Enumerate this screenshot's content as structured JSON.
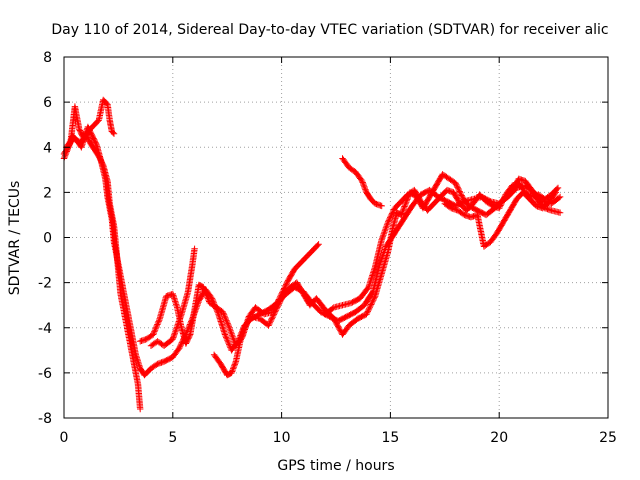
{
  "chart_data": {
    "type": "scatter",
    "title": "Day 110 of 2014, Sidereal Day-to-day VTEC variation (SDTVAR) for receiver alic",
    "xlabel": "GPS time / hours",
    "ylabel": "SDTVAR / TECUs",
    "xlim": [
      0,
      25
    ],
    "ylim": [
      -8,
      8
    ],
    "xticks": [
      "0",
      "5",
      "10",
      "15",
      "20",
      "25"
    ],
    "yticks": [
      "8",
      "6",
      "4",
      "2",
      "0",
      "-2",
      "-4",
      "-6",
      "-8"
    ],
    "grid": true,
    "marker": "+",
    "color": "#ff0000",
    "series": [
      {
        "values": [
          [
            0.0,
            3.5
          ],
          [
            0.2,
            4.0
          ],
          [
            0.4,
            4.5
          ],
          [
            0.6,
            4.3
          ],
          [
            0.8,
            4.0
          ],
          [
            1.0,
            4.6
          ],
          [
            1.2,
            4.2
          ],
          [
            1.4,
            3.9
          ],
          [
            1.6,
            3.6
          ],
          [
            1.8,
            3.2
          ],
          [
            2.0,
            2.5
          ],
          [
            2.1,
            1.5
          ],
          [
            2.3,
            0.5
          ],
          [
            2.4,
            -0.5
          ],
          [
            2.5,
            -1.5
          ],
          [
            2.6,
            -2.5
          ],
          [
            2.8,
            -3.5
          ],
          [
            3.0,
            -4.5
          ],
          [
            3.2,
            -5.5
          ],
          [
            3.4,
            -6.5
          ],
          [
            3.5,
            -7.6
          ]
        ]
      },
      {
        "values": [
          [
            0.0,
            3.7
          ],
          [
            0.3,
            4.2
          ],
          [
            0.5,
            5.8
          ],
          [
            0.7,
            4.8
          ],
          [
            0.9,
            4.4
          ],
          [
            1.1,
            4.9
          ],
          [
            1.3,
            4.5
          ],
          [
            1.5,
            4.1
          ],
          [
            1.7,
            3.4
          ],
          [
            1.9,
            2.6
          ],
          [
            2.0,
            1.8
          ],
          [
            2.2,
            0.8
          ],
          [
            2.3,
            -0.2
          ],
          [
            2.5,
            -1.2
          ],
          [
            2.7,
            -2.2
          ],
          [
            2.9,
            -3.2
          ],
          [
            3.1,
            -4.2
          ],
          [
            3.3,
            -5.2
          ],
          [
            3.5,
            -5.8
          ],
          [
            3.7,
            -6.1
          ],
          [
            4.0,
            -5.8
          ],
          [
            4.3,
            -5.6
          ],
          [
            4.6,
            -5.5
          ],
          [
            5.0,
            -5.3
          ],
          [
            5.3,
            -4.9
          ],
          [
            5.6,
            -4.3
          ],
          [
            5.9,
            -3.6
          ],
          [
            6.2,
            -2.8
          ],
          [
            6.5,
            -2.3
          ],
          [
            6.8,
            -2.7
          ],
          [
            7.1,
            -3.4
          ],
          [
            7.4,
            -4.3
          ],
          [
            7.7,
            -5.0
          ],
          [
            8.0,
            -4.6
          ],
          [
            8.3,
            -3.9
          ],
          [
            8.6,
            -3.6
          ],
          [
            9.0,
            -3.4
          ],
          [
            9.4,
            -3.2
          ],
          [
            9.8,
            -2.9
          ],
          [
            10.2,
            -2.5
          ],
          [
            10.6,
            -2.2
          ],
          [
            11.0,
            -2.4
          ],
          [
            11.4,
            -2.9
          ],
          [
            11.8,
            -3.3
          ],
          [
            12.2,
            -3.5
          ],
          [
            12.6,
            -3.7
          ],
          [
            13.0,
            -3.5
          ],
          [
            13.4,
            -3.3
          ],
          [
            13.8,
            -3.0
          ],
          [
            14.2,
            -2.4
          ],
          [
            14.5,
            -1.2
          ],
          [
            14.8,
            -0.4
          ],
          [
            15.2,
            0.2
          ],
          [
            15.6,
            0.8
          ],
          [
            16.0,
            1.4
          ],
          [
            16.4,
            1.9
          ],
          [
            16.8,
            2.1
          ],
          [
            17.2,
            1.8
          ],
          [
            17.6,
            1.6
          ],
          [
            18.0,
            1.4
          ],
          [
            18.4,
            1.6
          ],
          [
            18.8,
            1.7
          ],
          [
            19.2,
            1.8
          ],
          [
            19.6,
            1.6
          ],
          [
            20.0,
            1.5
          ],
          [
            20.4,
            1.8
          ],
          [
            20.8,
            2.2
          ],
          [
            21.2,
            2.3
          ],
          [
            21.6,
            2.0
          ],
          [
            22.0,
            1.6
          ],
          [
            22.4,
            1.5
          ],
          [
            22.8,
            1.8
          ]
        ]
      },
      {
        "values": [
          [
            0.1,
            4.0
          ],
          [
            0.4,
            4.4
          ],
          [
            0.8,
            4.2
          ],
          [
            1.2,
            4.8
          ],
          [
            1.6,
            5.2
          ],
          [
            1.8,
            6.1
          ],
          [
            2.0,
            5.9
          ],
          [
            2.1,
            5.2
          ],
          [
            2.2,
            4.7
          ],
          [
            2.3,
            4.6
          ]
        ]
      },
      {
        "values": [
          [
            3.5,
            -4.6
          ],
          [
            3.8,
            -4.5
          ],
          [
            4.1,
            -4.3
          ],
          [
            4.4,
            -3.6
          ],
          [
            4.7,
            -2.6
          ],
          [
            5.0,
            -2.5
          ],
          [
            5.2,
            -3.1
          ],
          [
            5.4,
            -4.0
          ],
          [
            5.6,
            -4.7
          ],
          [
            5.8,
            -4.3
          ],
          [
            6.0,
            -3.2
          ],
          [
            6.2,
            -2.1
          ],
          [
            6.4,
            -2.2
          ],
          [
            6.7,
            -2.9
          ],
          [
            7.0,
            -3.1
          ],
          [
            7.3,
            -3.3
          ],
          [
            7.6,
            -4.0
          ],
          [
            7.9,
            -4.8
          ],
          [
            8.2,
            -4.4
          ],
          [
            8.5,
            -3.5
          ],
          [
            8.8,
            -3.1
          ],
          [
            9.2,
            -3.4
          ],
          [
            9.6,
            -3.3
          ],
          [
            10.0,
            -2.5
          ],
          [
            10.3,
            -1.9
          ],
          [
            10.6,
            -1.4
          ],
          [
            10.9,
            -1.1
          ],
          [
            11.2,
            -0.8
          ],
          [
            11.5,
            -0.5
          ],
          [
            11.7,
            -0.3
          ]
        ]
      },
      {
        "values": [
          [
            4.0,
            -4.8
          ],
          [
            4.3,
            -4.6
          ],
          [
            4.6,
            -4.8
          ],
          [
            5.0,
            -4.5
          ],
          [
            5.4,
            -3.4
          ],
          [
            5.7,
            -2.4
          ],
          [
            5.9,
            -1.2
          ],
          [
            6.0,
            -0.5
          ]
        ]
      },
      {
        "values": [
          [
            6.9,
            -5.2
          ],
          [
            7.2,
            -5.6
          ],
          [
            7.5,
            -6.1
          ],
          [
            7.7,
            -6.0
          ],
          [
            7.9,
            -5.5
          ],
          [
            8.1,
            -4.6
          ],
          [
            8.3,
            -4.0
          ],
          [
            8.6,
            -3.5
          ],
          [
            9.0,
            -3.6
          ],
          [
            9.4,
            -3.9
          ],
          [
            9.8,
            -3.1
          ],
          [
            10.1,
            -2.5
          ],
          [
            10.4,
            -2.2
          ],
          [
            10.7,
            -2.0
          ],
          [
            11.0,
            -2.5
          ],
          [
            11.3,
            -3.0
          ],
          [
            11.6,
            -2.7
          ],
          [
            12.0,
            -3.2
          ],
          [
            12.4,
            -3.6
          ],
          [
            12.8,
            -4.3
          ],
          [
            13.1,
            -3.9
          ],
          [
            13.5,
            -3.6
          ],
          [
            13.9,
            -3.4
          ],
          [
            14.3,
            -2.6
          ],
          [
            14.6,
            -1.6
          ],
          [
            14.9,
            -0.6
          ],
          [
            15.1,
            0.4
          ],
          [
            15.3,
            1.1
          ],
          [
            15.5,
            1.0
          ],
          [
            15.7,
            1.5
          ],
          [
            15.9,
            2.0
          ],
          [
            16.2,
            1.8
          ],
          [
            16.5,
            1.3
          ],
          [
            16.8,
            1.8
          ],
          [
            17.1,
            2.3
          ],
          [
            17.4,
            2.8
          ],
          [
            17.7,
            2.6
          ],
          [
            18.0,
            2.4
          ],
          [
            18.3,
            1.8
          ],
          [
            18.6,
            1.4
          ],
          [
            19.0,
            1.2
          ],
          [
            19.4,
            1.0
          ],
          [
            19.8,
            1.3
          ],
          [
            20.2,
            1.7
          ],
          [
            20.6,
            2.1
          ],
          [
            20.9,
            2.6
          ],
          [
            21.2,
            2.5
          ],
          [
            21.5,
            2.1
          ],
          [
            21.8,
            1.6
          ],
          [
            22.1,
            1.3
          ],
          [
            22.4,
            1.2
          ],
          [
            22.8,
            1.1
          ]
        ]
      },
      {
        "values": [
          [
            12.8,
            3.5
          ],
          [
            13.1,
            3.1
          ],
          [
            13.4,
            2.9
          ],
          [
            13.7,
            2.5
          ],
          [
            13.9,
            2.0
          ],
          [
            14.1,
            1.7
          ],
          [
            14.3,
            1.5
          ],
          [
            14.6,
            1.4
          ]
        ]
      },
      {
        "values": [
          [
            17.5,
            1.5
          ],
          [
            17.8,
            1.3
          ],
          [
            18.1,
            1.2
          ],
          [
            18.4,
            1.0
          ],
          [
            18.7,
            0.9
          ],
          [
            19.0,
            1.0
          ],
          [
            19.3,
            -0.4
          ],
          [
            19.6,
            -0.2
          ],
          [
            19.9,
            0.2
          ],
          [
            20.2,
            0.7
          ],
          [
            20.5,
            1.2
          ],
          [
            20.8,
            1.7
          ],
          [
            21.1,
            2.0
          ],
          [
            21.4,
            1.7
          ],
          [
            21.7,
            1.4
          ],
          [
            22.0,
            1.3
          ],
          [
            22.3,
            1.6
          ],
          [
            22.6,
            2.0
          ]
        ]
      },
      {
        "values": [
          [
            12.0,
            -3.4
          ],
          [
            12.4,
            -3.1
          ],
          [
            12.8,
            -3.0
          ],
          [
            13.2,
            -2.9
          ],
          [
            13.6,
            -2.7
          ],
          [
            14.0,
            -2.2
          ],
          [
            14.3,
            -1.3
          ],
          [
            14.6,
            -0.1
          ],
          [
            14.9,
            0.7
          ],
          [
            15.2,
            1.3
          ],
          [
            15.5,
            1.6
          ],
          [
            15.8,
            1.9
          ],
          [
            16.1,
            2.1
          ],
          [
            16.4,
            1.6
          ],
          [
            16.7,
            1.2
          ],
          [
            17.0,
            1.5
          ],
          [
            17.3,
            1.8
          ],
          [
            17.6,
            2.1
          ],
          [
            17.9,
            2.0
          ],
          [
            18.2,
            1.5
          ],
          [
            18.5,
            1.2
          ],
          [
            18.8,
            1.5
          ],
          [
            19.1,
            1.9
          ],
          [
            19.4,
            1.6
          ],
          [
            19.7,
            1.4
          ],
          [
            20.0,
            1.3
          ],
          [
            20.3,
            1.9
          ],
          [
            20.6,
            2.3
          ],
          [
            20.9,
            2.4
          ],
          [
            21.2,
            2.0
          ],
          [
            21.5,
            1.8
          ],
          [
            21.8,
            1.9
          ],
          [
            22.1,
            1.7
          ],
          [
            22.4,
            1.9
          ],
          [
            22.7,
            2.2
          ]
        ]
      }
    ]
  }
}
